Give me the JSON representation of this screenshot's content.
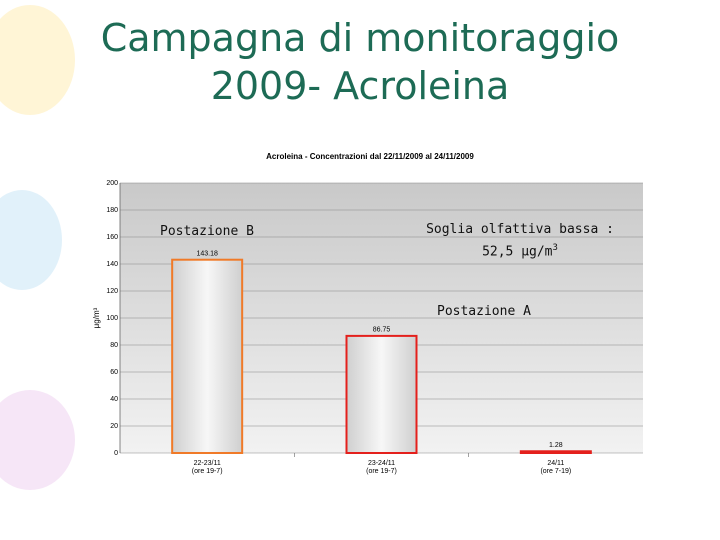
{
  "slide": {
    "title_lines": [
      "Campagna di monitoraggio",
      "2009- Acroleina"
    ]
  },
  "annotations": {
    "postazione_b": "Postazione B",
    "soglia_lines": [
      "Soglia olfattiva bassa :",
      "52,5 μg/m"
    ],
    "soglia_sup": "3",
    "postazione_a": "Postazione A"
  },
  "chart_data": {
    "type": "bar",
    "title": "Acroleina - Concentrazioni dal 22/11/2009 al 24/11/2009",
    "y_label": "μg/m³",
    "categories": [
      [
        "22-23/11",
        "(ore 19-7)"
      ],
      [
        "23-24/11",
        "(ore 19-7)"
      ],
      [
        "24/11",
        "(ore 7-19)"
      ]
    ],
    "values": [
      143.18,
      86.75,
      1.28
    ],
    "colors": [
      "#f07a28",
      "#e4201c",
      "#e4201c"
    ],
    "ylim": [
      0,
      200
    ],
    "yticks": [
      0,
      20,
      40,
      60,
      80,
      100,
      120,
      140,
      160,
      180,
      200
    ],
    "grid": true
  }
}
